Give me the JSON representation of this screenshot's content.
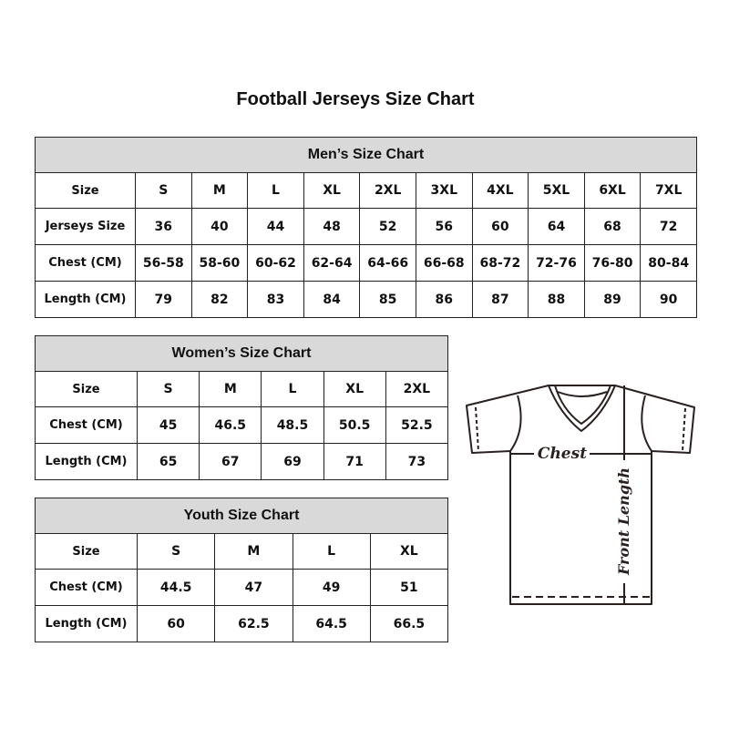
{
  "title": "Football Jerseys Size Chart",
  "tables": {
    "men": {
      "heading": "Men’s Size Chart",
      "rows": [
        [
          "Size",
          "S",
          "M",
          "L",
          "XL",
          "2XL",
          "3XL",
          "4XL",
          "5XL",
          "6XL",
          "7XL"
        ],
        [
          "Jerseys Size",
          "36",
          "40",
          "44",
          "48",
          "52",
          "56",
          "60",
          "64",
          "68",
          "72"
        ],
        [
          "Chest (CM)",
          "56-58",
          "58-60",
          "60-62",
          "62-64",
          "64-66",
          "66-68",
          "68-72",
          "72-76",
          "76-80",
          "80-84"
        ],
        [
          "Length (CM)",
          "79",
          "82",
          "83",
          "84",
          "85",
          "86",
          "87",
          "88",
          "89",
          "90"
        ]
      ]
    },
    "women": {
      "heading": "Women’s Size Chart",
      "rows": [
        [
          "Size",
          "S",
          "M",
          "L",
          "XL",
          "2XL"
        ],
        [
          "Chest (CM)",
          "45",
          "46.5",
          "48.5",
          "50.5",
          "52.5"
        ],
        [
          "Length (CM)",
          "65",
          "67",
          "69",
          "71",
          "73"
        ]
      ]
    },
    "youth": {
      "heading": "Youth Size Chart",
      "rows": [
        [
          "Size",
          "S",
          "M",
          "L",
          "XL"
        ],
        [
          "Chest (CM)",
          "44.5",
          "47",
          "49",
          "51"
        ],
        [
          "Length (CM)",
          "60",
          "62.5",
          "64.5",
          "66.5"
        ]
      ]
    }
  },
  "diagram": {
    "chest_label": "Chest",
    "length_label": "Front Length"
  },
  "colors": {
    "header_bg": "#d9d9d9",
    "line": "#222222"
  }
}
